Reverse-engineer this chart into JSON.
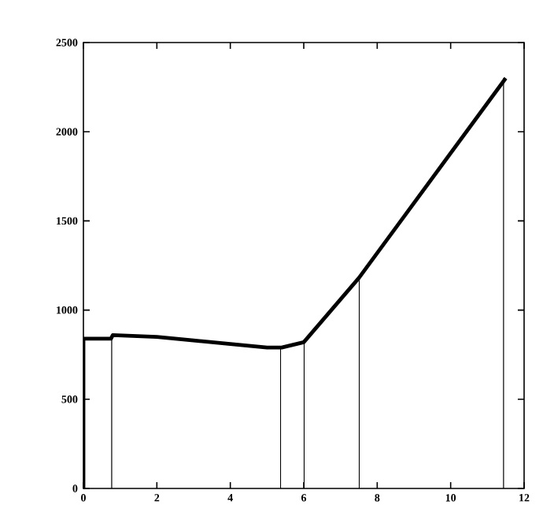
{
  "chart_data": {
    "type": "line",
    "xlim": [
      0,
      12
    ],
    "ylim": [
      0,
      2500
    ],
    "xticks": [
      0,
      2,
      4,
      6,
      8,
      10,
      12
    ],
    "yticks": [
      0,
      500,
      1000,
      1500,
      2000,
      2500
    ],
    "grid": false,
    "marker": "none",
    "line_style": "solid",
    "series": [
      {
        "color": "#000000",
        "x": [
          0,
          0,
          0.75,
          0.8,
          2,
          3,
          4,
          5,
          5.4,
          6,
          7.5,
          11.5
        ],
        "values": [
          0,
          840,
          840,
          860,
          850,
          830,
          810,
          790,
          790,
          820,
          1180,
          2300
        ]
      },
      {
        "color": "#000000",
        "x": [
          0.77,
          0.77
        ],
        "values": [
          0,
          840
        ]
      },
      {
        "color": "#000000",
        "x": [
          5.37,
          5.37
        ],
        "values": [
          0,
          790
        ]
      },
      {
        "color": "#000000",
        "x": [
          6.01,
          6.01
        ],
        "values": [
          0,
          820
        ]
      },
      {
        "color": "#000000",
        "x": [
          7.51,
          7.51
        ],
        "values": [
          0,
          1180
        ]
      },
      {
        "color": "#000000",
        "x": [
          11.44,
          11.44
        ],
        "values": [
          0,
          2300
        ]
      }
    ]
  }
}
